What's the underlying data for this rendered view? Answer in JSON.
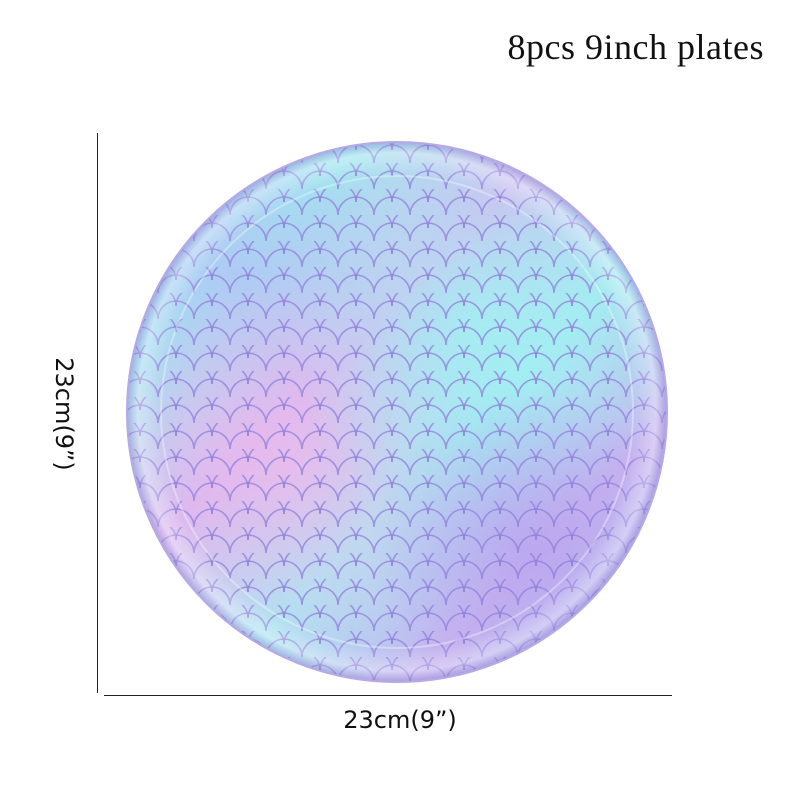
{
  "title": "8pcs 9inch plates",
  "dimensions": {
    "width_label": "23cm(9”)",
    "height_label": "23cm(9”)"
  },
  "product": {
    "pattern": "mermaid-scale",
    "colors": {
      "lavender": "#b9a6ee",
      "aqua": "#9fe8ef",
      "pink": "#e6b5ea",
      "blue": "#a9c4f3",
      "scale_line": "#8f7fd9"
    }
  }
}
